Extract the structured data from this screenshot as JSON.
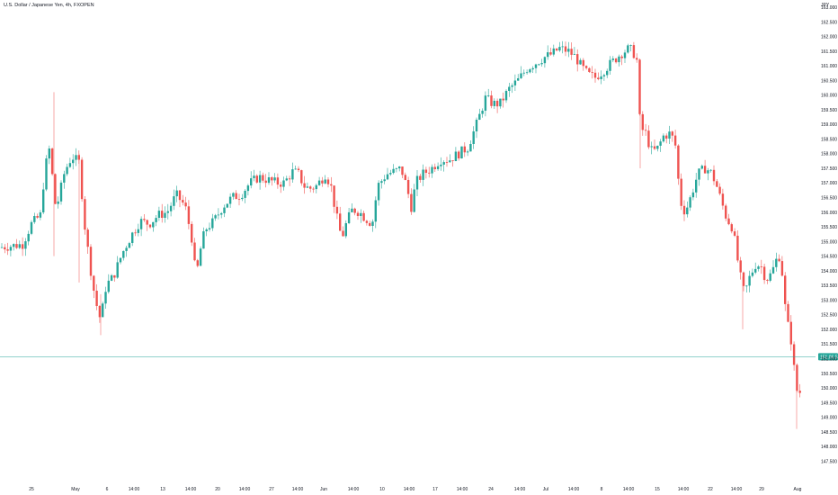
{
  "header": {
    "symbol_title": "U.S. Dollar / Japanese Yen, 4h, FXOPEN",
    "currency_label": "JPY"
  },
  "price_scale": {
    "ticks": [
      "163.000",
      "162.500",
      "162.000",
      "161.500",
      "161.000",
      "160.500",
      "160.000",
      "159.500",
      "159.000",
      "158.500",
      "158.000",
      "157.500",
      "157.000",
      "156.500",
      "156.000",
      "155.500",
      "155.000",
      "154.500",
      "154.000",
      "153.500",
      "153.000",
      "152.500",
      "152.000",
      "151.500",
      "151.000",
      "150.500",
      "150.000",
      "149.500",
      "149.000",
      "148.500",
      "148.000",
      "147.500"
    ],
    "last_price_label": "151.06.53"
  },
  "time_scale": {
    "ticks": [
      "25",
      "May",
      "6",
      "14:00",
      "13",
      "14:00",
      "20",
      "14:00",
      "27",
      "14:00",
      "Jun",
      "14:00",
      "10",
      "14:00",
      "17",
      "14:00",
      "24",
      "14:00",
      "Jul",
      "14:00",
      "8",
      "14:00",
      "15",
      "14:00",
      "22",
      "14:00",
      "29",
      "Aug"
    ]
  },
  "colors": {
    "up": "#26a69a",
    "down": "#ef5350",
    "last_price_line": "#26a69a",
    "last_price_badge": "#26a69a"
  },
  "chart_data": {
    "type": "candlestick",
    "title": "U.S. Dollar / Japanese Yen, 4h, FXOPEN",
    "ylabel": "JPY",
    "ylim": [
      147.5,
      163.0
    ],
    "last_price": 151.065,
    "x": [
      "25",
      "May",
      "6",
      "14:00",
      "13",
      "14:00",
      "20",
      "14:00",
      "27",
      "14:00",
      "Jun",
      "14:00",
      "10",
      "14:00",
      "17",
      "14:00",
      "24",
      "14:00",
      "Jul",
      "14:00",
      "8",
      "14:00",
      "15",
      "14:00",
      "22",
      "14:00",
      "29",
      "Aug"
    ],
    "path_close": [
      [
        0,
        154.8
      ],
      [
        25,
        154.9
      ],
      [
        35,
        155.6
      ],
      [
        45,
        155.9
      ],
      [
        50,
        157.5
      ],
      [
        56,
        158.3
      ],
      [
        60,
        156.3
      ],
      [
        64,
        156.3
      ],
      [
        72,
        157.4
      ],
      [
        80,
        157.9
      ],
      [
        88,
        157.7
      ],
      [
        94,
        155.6
      ],
      [
        100,
        154.2
      ],
      [
        106,
        153.0
      ],
      [
        112,
        152.3
      ],
      [
        118,
        153.5
      ],
      [
        126,
        153.8
      ],
      [
        136,
        154.6
      ],
      [
        146,
        155.2
      ],
      [
        156,
        155.7
      ],
      [
        166,
        155.6
      ],
      [
        176,
        155.9
      ],
      [
        186,
        156.0
      ],
      [
        196,
        156.6
      ],
      [
        206,
        156.2
      ],
      [
        214,
        155.0
      ],
      [
        218,
        153.7
      ],
      [
        222,
        154.6
      ],
      [
        228,
        155.4
      ],
      [
        238,
        155.7
      ],
      [
        248,
        156.2
      ],
      [
        258,
        156.5
      ],
      [
        268,
        156.6
      ],
      [
        278,
        157.0
      ],
      [
        288,
        157.2
      ],
      [
        298,
        157.1
      ],
      [
        308,
        157.0
      ],
      [
        316,
        157.0
      ],
      [
        326,
        157.4
      ],
      [
        332,
        157.3
      ],
      [
        338,
        156.9
      ],
      [
        344,
        156.8
      ],
      [
        352,
        156.9
      ],
      [
        362,
        157.3
      ],
      [
        368,
        156.9
      ],
      [
        374,
        155.9
      ],
      [
        380,
        155.1
      ],
      [
        386,
        155.7
      ],
      [
        392,
        156.1
      ],
      [
        400,
        156.0
      ],
      [
        406,
        155.8
      ],
      [
        414,
        155.6
      ],
      [
        420,
        156.9
      ],
      [
        430,
        157.3
      ],
      [
        440,
        157.4
      ],
      [
        446,
        157.5
      ],
      [
        452,
        156.9
      ],
      [
        458,
        156.1
      ],
      [
        462,
        157.0
      ],
      [
        470,
        157.3
      ],
      [
        480,
        157.5
      ],
      [
        490,
        157.8
      ],
      [
        500,
        157.8
      ],
      [
        510,
        158.0
      ],
      [
        520,
        158.2
      ],
      [
        530,
        159.0
      ],
      [
        540,
        159.9
      ],
      [
        548,
        159.7
      ],
      [
        556,
        159.7
      ],
      [
        566,
        160.2
      ],
      [
        576,
        160.5
      ],
      [
        586,
        160.9
      ],
      [
        596,
        161.1
      ],
      [
        606,
        161.3
      ],
      [
        614,
        161.4
      ],
      [
        622,
        161.6
      ],
      [
        632,
        161.5
      ],
      [
        640,
        161.3
      ],
      [
        646,
        161.0
      ],
      [
        654,
        160.7
      ],
      [
        662,
        160.6
      ],
      [
        670,
        160.8
      ],
      [
        680,
        161.1
      ],
      [
        690,
        161.4
      ],
      [
        700,
        161.6
      ],
      [
        708,
        161.3
      ],
      [
        712,
        158.9
      ],
      [
        718,
        158.7
      ],
      [
        724,
        158.1
      ],
      [
        730,
        158.1
      ],
      [
        738,
        158.6
      ],
      [
        746,
        158.7
      ],
      [
        752,
        158.2
      ],
      [
        756,
        156.4
      ],
      [
        762,
        156.0
      ],
      [
        768,
        156.5
      ],
      [
        776,
        157.3
      ],
      [
        784,
        157.5
      ],
      [
        790,
        157.4
      ],
      [
        796,
        157.0
      ],
      [
        802,
        156.4
      ],
      [
        808,
        155.8
      ],
      [
        814,
        155.5
      ],
      [
        818,
        154.9
      ],
      [
        822,
        154.0
      ],
      [
        828,
        153.2
      ],
      [
        834,
        153.8
      ],
      [
        840,
        154.2
      ],
      [
        846,
        154.2
      ],
      [
        852,
        153.7
      ],
      [
        858,
        153.9
      ],
      [
        866,
        154.6
      ],
      [
        870,
        153.9
      ],
      [
        874,
        152.5
      ],
      [
        880,
        151.6
      ],
      [
        884,
        150.4
      ],
      [
        888,
        149.6
      ],
      [
        892,
        150.2
      ]
    ]
  }
}
